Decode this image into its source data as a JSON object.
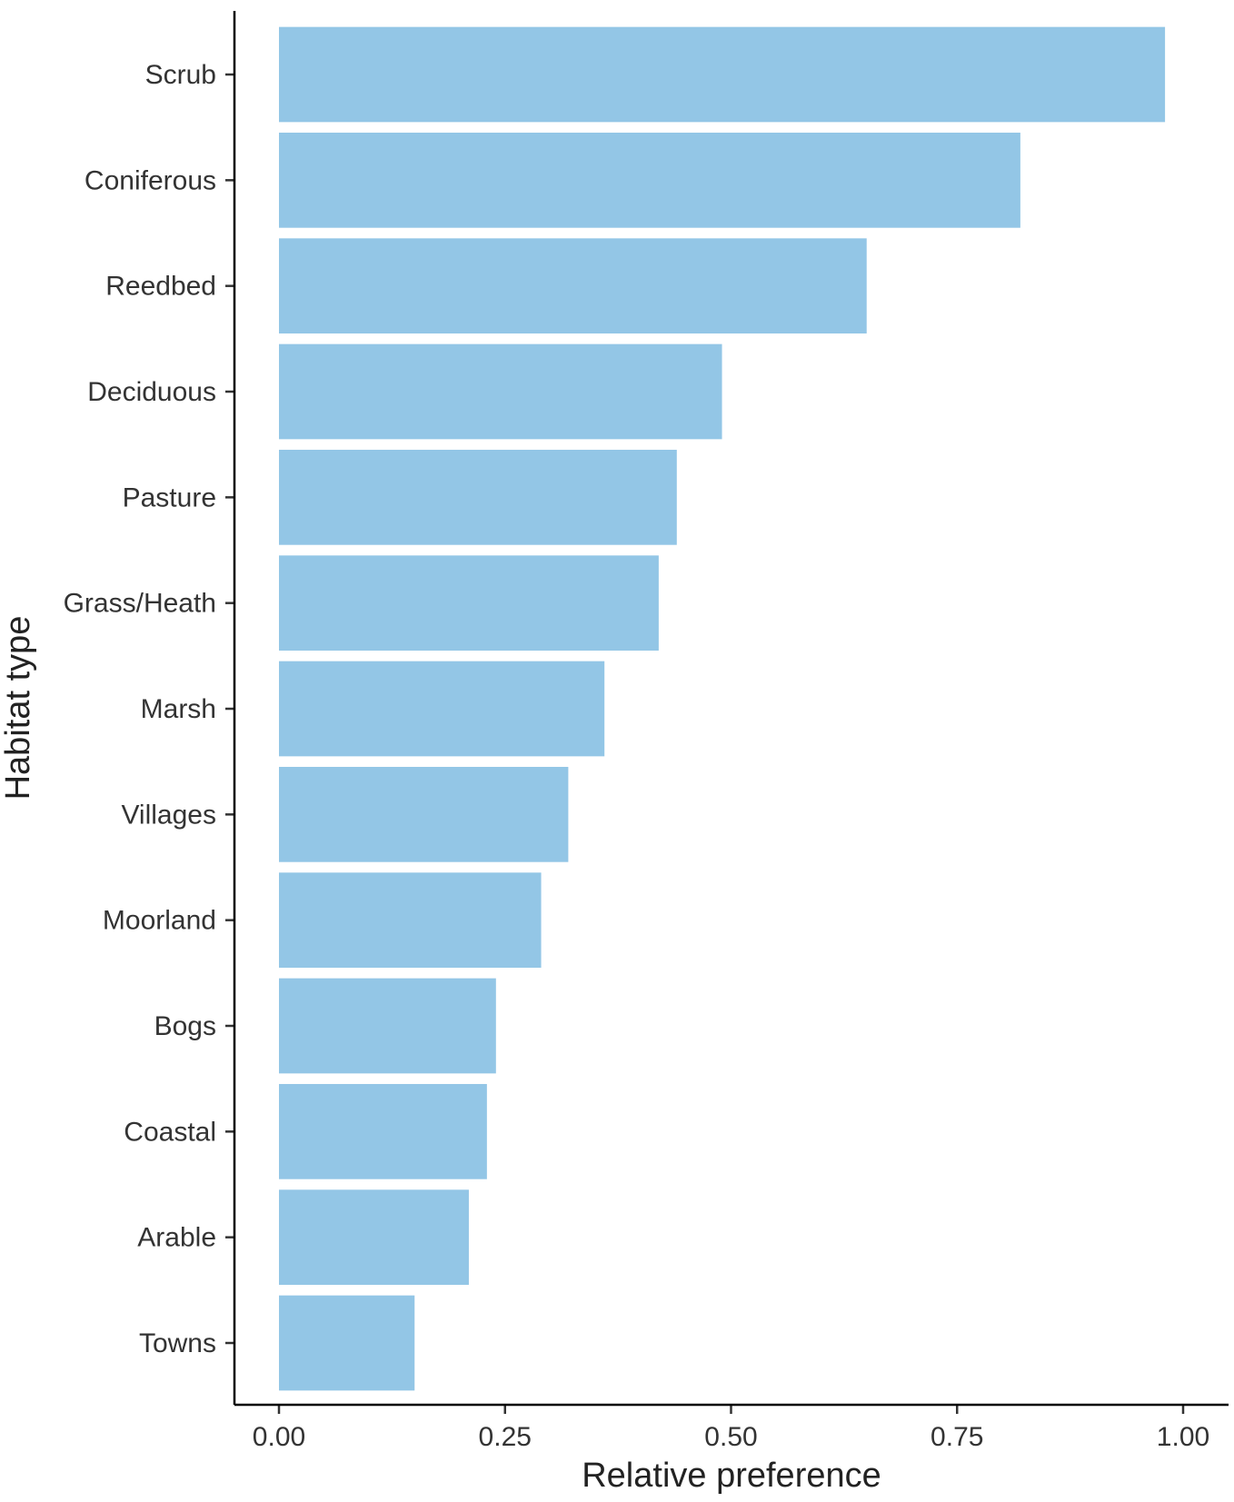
{
  "chart_data": {
    "type": "bar",
    "orientation": "horizontal",
    "categories": [
      "Scrub",
      "Coniferous",
      "Reedbed",
      "Deciduous",
      "Pasture",
      "Grass/Heath",
      "Marsh",
      "Villages",
      "Moorland",
      "Bogs",
      "Coastal",
      "Arable",
      "Towns"
    ],
    "values": [
      0.98,
      0.82,
      0.65,
      0.49,
      0.44,
      0.42,
      0.36,
      0.32,
      0.29,
      0.24,
      0.23,
      0.21,
      0.15
    ],
    "xlabel": "Relative preference",
    "ylabel": "Habitat type",
    "xticks": [
      "0.00",
      "0.25",
      "0.50",
      "0.75",
      "1.00"
    ],
    "xtick_values": [
      0,
      0.25,
      0.5,
      0.75,
      1.0
    ],
    "xlim": [
      -0.05,
      1.05
    ],
    "grid": false,
    "bar_color": "#93c6e6"
  }
}
